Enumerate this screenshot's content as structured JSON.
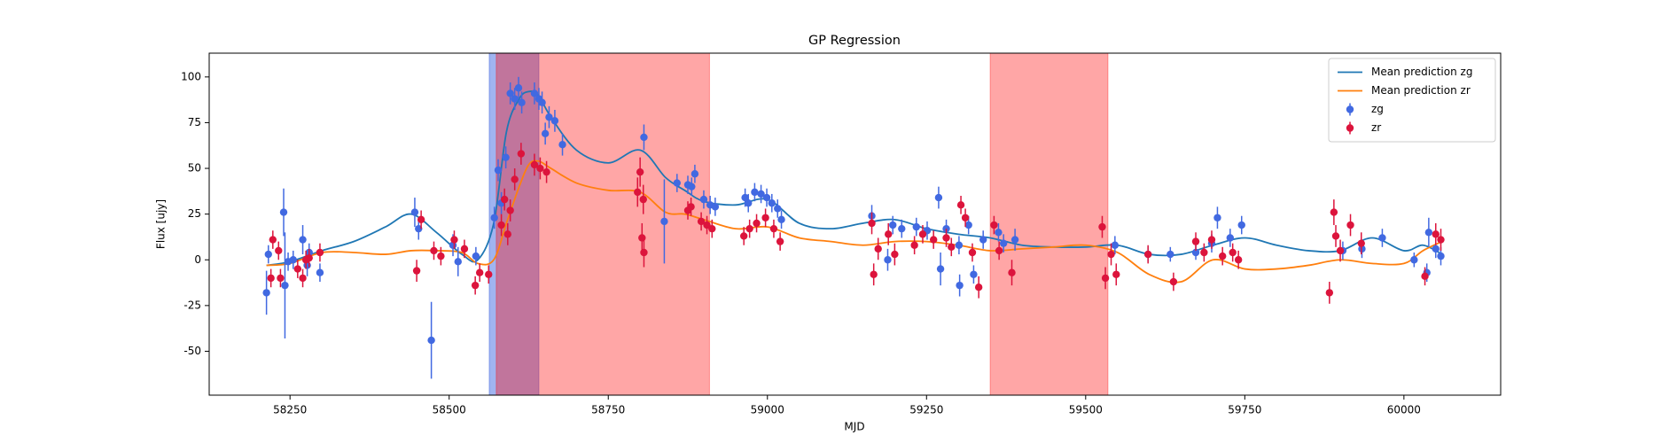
{
  "chart_data": {
    "type": "gp",
    "title": "GP Regression",
    "x_label": "MJD",
    "y_label": "Flux [ujy]",
    "xlim": [
      58123,
      60152
    ],
    "ylim": [
      -74,
      113
    ],
    "xticks": [
      58250,
      58500,
      58750,
      59000,
      59250,
      59500,
      59750,
      60000
    ],
    "yticks": [
      -50,
      -25,
      0,
      25,
      50,
      75,
      100
    ],
    "legend": "upper right",
    "spans": [
      {
        "x": [
          58563,
          58641
        ],
        "color": "#4169e1",
        "alpha": 0.5
      },
      {
        "x": [
          58574,
          58909
        ],
        "color": "#ff0000",
        "alpha": 0.35
      },
      {
        "x": [
          59350,
          59535
        ],
        "color": "#ff0000",
        "alpha": 0.35
      }
    ],
    "series": [
      {
        "name": "Mean prediction zg",
        "color": "#1f77b4",
        "x": [
          58213,
          58250,
          58300,
          58350,
          58400,
          58440,
          58480,
          58520,
          58545,
          58570,
          58590,
          58610,
          58625,
          58640,
          58660,
          58700,
          58750,
          58800,
          58840,
          58870,
          58900,
          58950,
          59000,
          59050,
          59100,
          59150,
          59200,
          59250,
          59300,
          59350,
          59400,
          59450,
          59500,
          59550,
          59600,
          59650,
          59700,
          59750,
          59800,
          59850,
          59900,
          59950,
          60000,
          60030,
          60060
        ],
        "values": [
          -3,
          -1,
          5,
          10,
          18,
          25,
          15,
          3,
          0,
          20,
          70,
          88,
          92,
          90,
          78,
          60,
          53,
          60,
          45,
          38,
          32,
          30,
          33,
          20,
          17,
          20,
          22,
          17,
          14,
          12,
          8,
          7,
          7,
          8,
          3,
          3,
          8,
          12,
          8,
          5,
          5,
          12,
          5,
          8,
          3
        ]
      },
      {
        "name": "Mean prediction zr",
        "color": "#ff7f0e",
        "x": [
          58213,
          58250,
          58300,
          58350,
          58400,
          58440,
          58480,
          58520,
          58545,
          58570,
          58590,
          58610,
          58625,
          58640,
          58660,
          58700,
          58750,
          58800,
          58840,
          58870,
          58900,
          58950,
          59000,
          59050,
          59100,
          59150,
          59200,
          59250,
          59300,
          59350,
          59400,
          59450,
          59500,
          59550,
          59600,
          59650,
          59700,
          59750,
          59800,
          59850,
          59900,
          59950,
          60000,
          60030,
          60060
        ],
        "values": [
          -3,
          -2,
          4,
          4,
          3,
          5,
          5,
          4,
          -2,
          0,
          20,
          40,
          52,
          54,
          50,
          42,
          38,
          37,
          26,
          25,
          22,
          17,
          18,
          12,
          10,
          8,
          10,
          10,
          8,
          5,
          6,
          7,
          8,
          4,
          -8,
          -12,
          0,
          -5,
          -5,
          -3,
          0,
          -2,
          -2,
          5,
          10
        ]
      },
      {
        "name": "zg",
        "color": "#4169e1",
        "x": [
          58213,
          58216,
          58240,
          58242,
          58247,
          58255,
          58270,
          58277,
          58280,
          58297,
          58446,
          58452,
          58472,
          58506,
          58514,
          58542,
          58571,
          58577,
          58582,
          58589,
          58596,
          58603,
          58609,
          58614,
          58634,
          58641,
          58646,
          58651,
          58657,
          58666,
          58678,
          58806,
          58838,
          58858,
          58875,
          58881,
          58886,
          58900,
          58910,
          58918,
          58965,
          58970,
          58980,
          58990,
          58999,
          59007,
          59016,
          59022,
          59164,
          59189,
          59197,
          59211,
          59234,
          59251,
          59269,
          59272,
          59281,
          59301,
          59302,
          59316,
          59324,
          59339,
          59363,
          59371,
          59389,
          59546,
          59598,
          59633,
          59673,
          59698,
          59707,
          59727,
          59745,
          59904,
          59934,
          59966,
          60016,
          60036,
          60039,
          60050,
          60058
        ],
        "values": [
          -18,
          3,
          26,
          -14,
          -1,
          0,
          11,
          -3,
          4,
          -7,
          26,
          17,
          -44,
          8,
          -1,
          2,
          23,
          49,
          31,
          56,
          91,
          88,
          94,
          86,
          91,
          88,
          86,
          69,
          78,
          76,
          63,
          67,
          21,
          42,
          41,
          40,
          47,
          33,
          30,
          29,
          34,
          31,
          37,
          36,
          34,
          31,
          28,
          22,
          24,
          0,
          19,
          17,
          18,
          16,
          34,
          -5,
          17,
          8,
          -14,
          19,
          -8,
          11,
          15,
          9,
          11,
          8,
          3,
          3,
          4,
          9,
          23,
          12,
          19,
          5,
          6,
          12,
          0,
          -7,
          15,
          6,
          2
        ],
        "errors": [
          12,
          5,
          13,
          29,
          5,
          5,
          8,
          6,
          5,
          5,
          8,
          6,
          21,
          6,
          8,
          5,
          6,
          6,
          6,
          6,
          6,
          6,
          6,
          6,
          6,
          6,
          6,
          6,
          6,
          6,
          6,
          7,
          23,
          5,
          5,
          5,
          5,
          5,
          5,
          5,
          5,
          5,
          5,
          5,
          5,
          5,
          5,
          5,
          6,
          6,
          5,
          5,
          5,
          5,
          6,
          9,
          5,
          5,
          6,
          5,
          5,
          5,
          5,
          5,
          6,
          5,
          4,
          4,
          4,
          5,
          6,
          5,
          5,
          5,
          5,
          5,
          4,
          5,
          8,
          5,
          5
        ]
      },
      {
        "name": "zr",
        "color": "#dc143c",
        "x": [
          58220,
          58223,
          58232,
          58235,
          58262,
          58270,
          58275,
          58280,
          58297,
          58449,
          58456,
          58476,
          58487,
          58508,
          58524,
          58541,
          58548,
          58562,
          58582,
          58587,
          58592,
          58596,
          58603,
          58613,
          58634,
          58643,
          58653,
          58796,
          58800,
          58805,
          58803,
          58806,
          58875,
          58880,
          58896,
          58905,
          58913,
          58963,
          58972,
          58983,
          58997,
          59010,
          59020,
          59164,
          59167,
          59174,
          59190,
          59200,
          59231,
          59244,
          59261,
          59281,
          59289,
          59304,
          59311,
          59322,
          59332,
          59356,
          59364,
          59384,
          59526,
          59531,
          59540,
          59548,
          59598,
          59638,
          59673,
          59686,
          59698,
          59715,
          59731,
          59740,
          59883,
          59890,
          59893,
          59900,
          59916,
          59933,
          60033,
          60050,
          60058
        ],
        "values": [
          -10,
          11,
          5,
          -10,
          -5,
          -10,
          0,
          1,
          4,
          -6,
          22,
          5,
          2,
          11,
          6,
          -14,
          -7,
          -8,
          19,
          33,
          14,
          27,
          44,
          58,
          52,
          50,
          48,
          37,
          48,
          33,
          12,
          4,
          27,
          29,
          21,
          19,
          17,
          13,
          17,
          20,
          23,
          17,
          10,
          20,
          -8,
          6,
          14,
          3,
          8,
          14,
          11,
          12,
          7,
          30,
          23,
          4,
          -15,
          19,
          5,
          -7,
          18,
          -10,
          3,
          -8,
          3,
          -12,
          10,
          4,
          11,
          2,
          4,
          0,
          -18,
          26,
          13,
          5,
          19,
          9,
          -9,
          14,
          11
        ],
        "errors": [
          5,
          5,
          5,
          5,
          5,
          5,
          5,
          5,
          5,
          6,
          5,
          5,
          5,
          5,
          5,
          5,
          5,
          5,
          6,
          6,
          6,
          6,
          6,
          6,
          6,
          6,
          6,
          8,
          8,
          8,
          8,
          8,
          5,
          5,
          5,
          5,
          5,
          5,
          5,
          5,
          5,
          5,
          5,
          6,
          6,
          6,
          6,
          6,
          5,
          5,
          5,
          5,
          5,
          5,
          5,
          5,
          6,
          5,
          5,
          7,
          6,
          6,
          6,
          6,
          5,
          5,
          5,
          5,
          5,
          5,
          5,
          5,
          6,
          7,
          6,
          6,
          6,
          6,
          5,
          6,
          6
        ]
      }
    ]
  }
}
